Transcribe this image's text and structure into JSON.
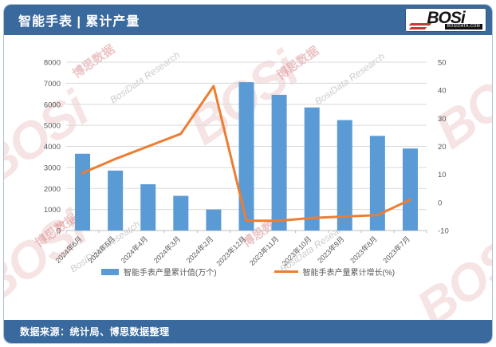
{
  "header": {
    "title": "智能手表 | 累计产量",
    "logo": {
      "brand": "BOSi",
      "site": "BOSIDATA.COM"
    }
  },
  "footer": {
    "source": "数据来源：统计局、博思数据整理"
  },
  "watermark": {
    "brand": "BOSi",
    "cn": "博思数据",
    "en": "BosiData Research"
  },
  "colors": {
    "header_blue": "#3a6a9d",
    "bar_blue": "#5b9bd5",
    "line_orange": "#ed7d31",
    "grid": "#d9d9d9",
    "axis_text": "#595959"
  },
  "chart_data": {
    "type": "bar",
    "title": "智能手表 | 累计产量",
    "categories": [
      "2024年6月",
      "2024年5月",
      "2024年4月",
      "2024年3月",
      "2024年2月",
      "2023年12月",
      "2023年11月",
      "2023年10月",
      "2023年9月",
      "2023年8月",
      "2023年7月"
    ],
    "series": [
      {
        "name": "智能手表产量累计值(万个)",
        "type": "bar",
        "axis": "left",
        "color": "#5b9bd5",
        "values": [
          3650,
          2850,
          2200,
          1650,
          1000,
          7050,
          6450,
          5850,
          5250,
          4500,
          3900
        ]
      },
      {
        "name": "智能手表产量累计增长(%)",
        "type": "line",
        "axis": "right",
        "color": "#ed7d31",
        "values": [
          10.5,
          15.5,
          20,
          24.5,
          41.5,
          -6.5,
          -6.5,
          -5.5,
          -5,
          -4.5,
          1
        ]
      }
    ],
    "left_axis": {
      "min": 0,
      "max": 8000,
      "step": 1000
    },
    "right_axis": {
      "min": -10,
      "max": 50,
      "step": 10
    },
    "grid": true,
    "legend_position": "bottom"
  }
}
